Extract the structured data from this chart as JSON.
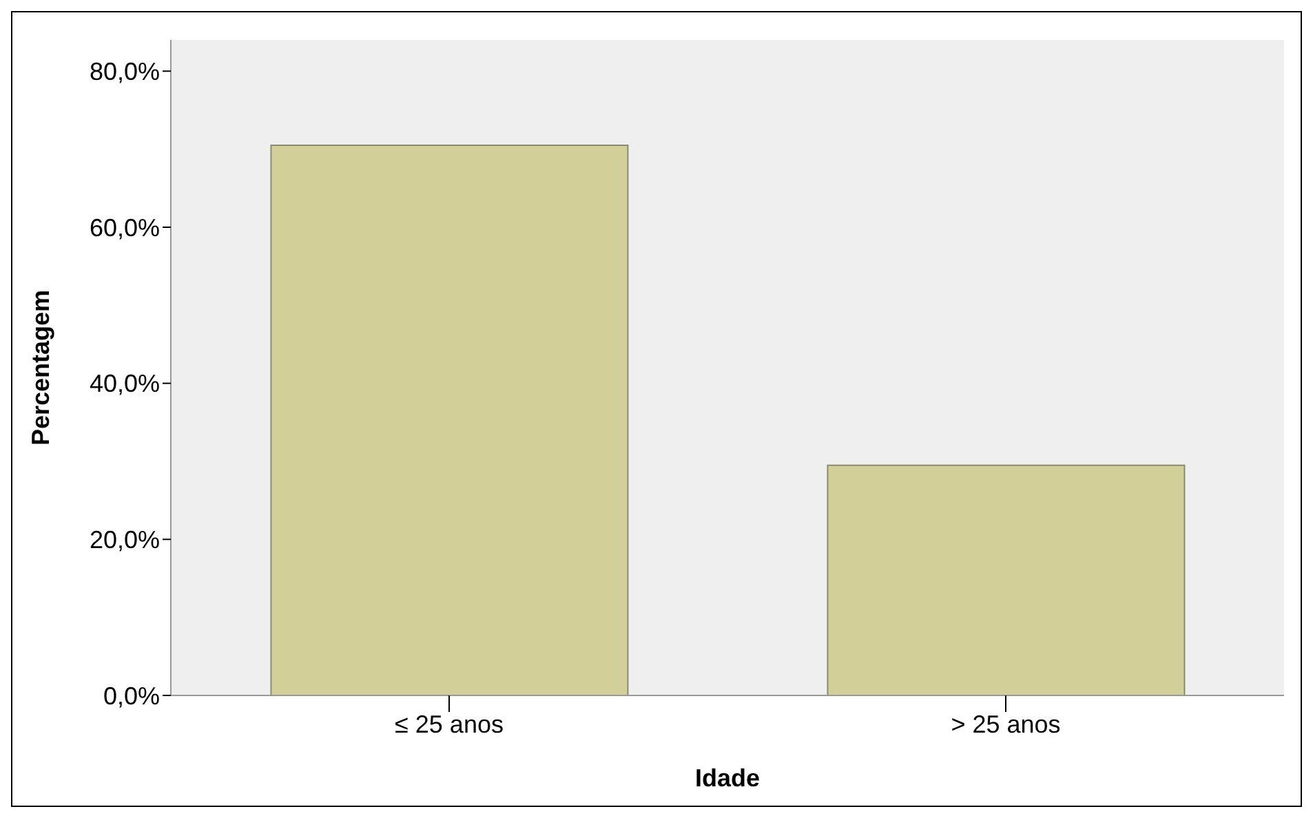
{
  "chart_data": {
    "type": "bar",
    "xlabel": "Idade",
    "ylabel": "Percentagem",
    "categories": [
      "≤ 25 anos",
      "> 25 anos"
    ],
    "values": [
      70.5,
      29.5
    ],
    "color": "#d3cf98",
    "ylim": [
      0,
      84
    ],
    "yticks": [
      {
        "value": 0,
        "label": "0,0%"
      },
      {
        "value": 20,
        "label": "20,0%"
      },
      {
        "value": 40,
        "label": "40,0%"
      },
      {
        "value": 60,
        "label": "60,0%"
      },
      {
        "value": 80,
        "label": "80,0%"
      }
    ],
    "grid": false,
    "legend": false
  }
}
